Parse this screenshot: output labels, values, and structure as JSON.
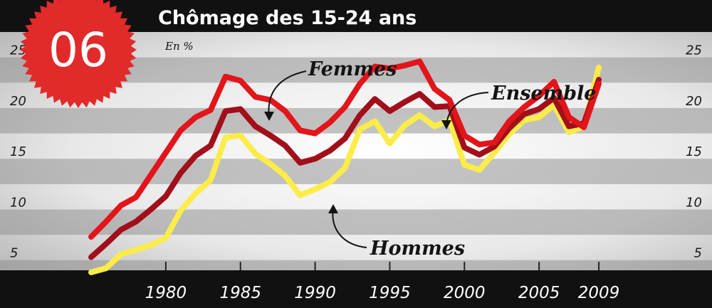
{
  "badge": {
    "number": "06"
  },
  "header": {
    "title": "Chômage des 15-24 ans"
  },
  "chart_data": {
    "type": "line",
    "title": "Chômage des 15-24 ans",
    "ylabel": "En %",
    "xlabel": "",
    "ylim": [
      4,
      27.5
    ],
    "xlim": [
      1975,
      2010
    ],
    "grid": true,
    "yticks": [
      "25",
      "20",
      "15",
      "10",
      "5"
    ],
    "ytick_values": [
      25,
      20,
      15,
      10,
      5
    ],
    "xticks": [
      "1980",
      "1985",
      "1990",
      "1995",
      "2000",
      "2005",
      "2009"
    ],
    "xtick_values": [
      1980,
      1985,
      1990,
      1995,
      2000,
      2005,
      2009
    ],
    "series": [
      {
        "name": "Femmes",
        "color": "#e2151b",
        "x": [
          1975,
          1976,
          1977,
          1978,
          1979,
          1980,
          1981,
          1982,
          1983,
          1984,
          1985,
          1986,
          1987,
          1988,
          1989,
          1990,
          1991,
          1992,
          1993,
          1994,
          1995,
          1996,
          1997,
          1998,
          1999,
          2000,
          2001,
          2002,
          2003,
          2004,
          2005,
          2006,
          2007,
          2008,
          2009
        ],
        "y": [
          7.3,
          8.8,
          10.4,
          11.2,
          13.4,
          15.6,
          17.8,
          19.1,
          19.8,
          23.1,
          22.7,
          21.1,
          20.8,
          19.7,
          17.8,
          17.5,
          18.6,
          20.1,
          22.4,
          24.1,
          23.9,
          24.2,
          24.6,
          21.9,
          20.8,
          17.3,
          16.4,
          16.6,
          18.7,
          20.1,
          21.2,
          22.6,
          19.1,
          18.1,
          22.4
        ]
      },
      {
        "name": "Ensemble",
        "color": "#a10f1a",
        "x": [
          1975,
          1976,
          1977,
          1978,
          1979,
          1980,
          1981,
          1982,
          1983,
          1984,
          1985,
          1986,
          1987,
          1988,
          1989,
          1990,
          1991,
          1992,
          1993,
          1994,
          1995,
          1996,
          1997,
          1998,
          1999,
          2000,
          2001,
          2002,
          2003,
          2004,
          2005,
          2006,
          2007,
          2008,
          2009
        ],
        "y": [
          5.3,
          6.6,
          8.0,
          8.8,
          10.0,
          11.3,
          13.6,
          15.3,
          16.3,
          19.7,
          19.9,
          18.2,
          17.3,
          16.3,
          14.6,
          15.0,
          15.8,
          17.0,
          19.3,
          20.9,
          19.7,
          20.6,
          21.4,
          20.1,
          20.2,
          16.1,
          15.4,
          16.2,
          18.0,
          19.4,
          19.9,
          21.0,
          18.2,
          18.5,
          22.8
        ]
      },
      {
        "name": "Hommes",
        "color": "#fbec4a",
        "x": [
          1975,
          1976,
          1977,
          1978,
          1979,
          1980,
          1981,
          1982,
          1983,
          1984,
          1985,
          1986,
          1987,
          1988,
          1989,
          1990,
          1991,
          1992,
          1993,
          1994,
          1995,
          1996,
          1997,
          1998,
          1999,
          2000,
          2001,
          2002,
          2003,
          2004,
          2005,
          2006,
          2007,
          2008,
          2009
        ],
        "y": [
          3.8,
          4.2,
          5.6,
          6.0,
          6.5,
          7.2,
          9.9,
          11.6,
          12.9,
          17.1,
          17.3,
          15.5,
          14.5,
          13.3,
          11.4,
          12.0,
          12.7,
          14.1,
          17.9,
          18.7,
          16.5,
          18.3,
          19.3,
          18.2,
          18.8,
          14.4,
          13.9,
          15.6,
          17.4,
          18.8,
          19.1,
          20.3,
          17.6,
          18.2,
          24.0
        ]
      }
    ]
  }
}
